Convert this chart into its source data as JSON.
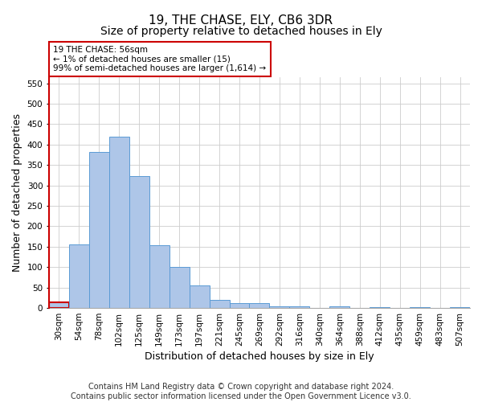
{
  "title": "19, THE CHASE, ELY, CB6 3DR",
  "subtitle": "Size of property relative to detached houses in Ely",
  "xlabel": "Distribution of detached houses by size in Ely",
  "ylabel": "Number of detached properties",
  "bar_labels": [
    "30sqm",
    "54sqm",
    "78sqm",
    "102sqm",
    "125sqm",
    "149sqm",
    "173sqm",
    "197sqm",
    "221sqm",
    "245sqm",
    "269sqm",
    "292sqm",
    "316sqm",
    "340sqm",
    "364sqm",
    "388sqm",
    "412sqm",
    "435sqm",
    "459sqm",
    "483sqm",
    "507sqm"
  ],
  "bar_values": [
    13,
    155,
    382,
    420,
    322,
    153,
    100,
    55,
    20,
    11,
    11,
    5,
    5,
    0,
    5,
    0,
    3,
    0,
    3,
    0,
    3
  ],
  "bar_color": "#aec6e8",
  "bar_edge_color": "#5b9bd5",
  "highlight_bar_index": 0,
  "highlight_color": "#cc0000",
  "annotation_text": "19 THE CHASE: 56sqm\n← 1% of detached houses are smaller (15)\n99% of semi-detached houses are larger (1,614) →",
  "annotation_box_color": "#ffffff",
  "annotation_box_edge_color": "#cc0000",
  "ylim": [
    0,
    565
  ],
  "yticks": [
    0,
    50,
    100,
    150,
    200,
    250,
    300,
    350,
    400,
    450,
    500,
    550
  ],
  "footer_line1": "Contains HM Land Registry data © Crown copyright and database right 2024.",
  "footer_line2": "Contains public sector information licensed under the Open Government Licence v3.0.",
  "bg_color": "#ffffff",
  "grid_color": "#cccccc",
  "title_fontsize": 11,
  "subtitle_fontsize": 10,
  "axis_label_fontsize": 9,
  "tick_fontsize": 7.5,
  "annotation_fontsize": 7.5,
  "footer_fontsize": 7
}
